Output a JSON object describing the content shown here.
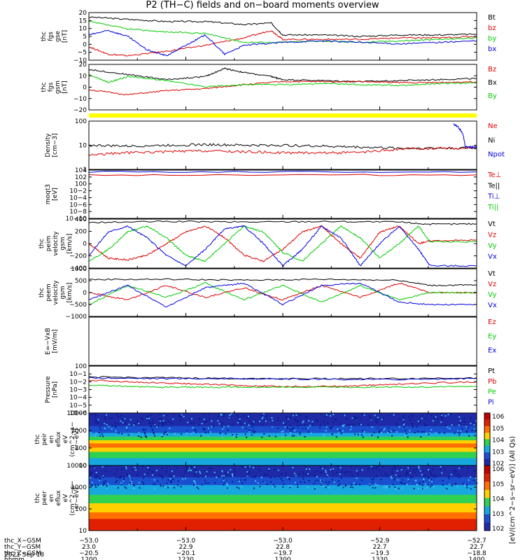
{
  "title": "P2 (TH−C) fields and on−board moments overview",
  "date_label": "2021 Sep 18",
  "orbit_rows": [
    {
      "label": "thc_X−GSM",
      "values": [
        "−53.0",
        "−53.0",
        "−53.0",
        "−52.9",
        "−52.7"
      ]
    },
    {
      "label": "thc_Y−GSM",
      "values": [
        "23.0",
        "22.9",
        "22.8",
        "22.7",
        "22.7"
      ]
    },
    {
      "label": "thc_Z−GSM",
      "values": [
        "−20.5",
        "−20.1",
        "−19.7",
        "−19.3",
        "−18.8"
      ]
    },
    {
      "label": "hhmm",
      "values": [
        "1200",
        "1230",
        "1300",
        "1330",
        "1400"
      ]
    }
  ],
  "colorbar_label": "[eV/(cm^2−s−sr−eV)] (All Qs)",
  "colorbar_ticks": [
    "10^2",
    "10^3",
    "10^4",
    "10^5",
    "10^6"
  ],
  "colors": {
    "black": "#000000",
    "red": "#dd0000",
    "green": "#00cc00",
    "blue": "#0000dd",
    "yellow": "#ffff00"
  },
  "chart_data": [
    {
      "type": "line",
      "ylabel": [
        "thc",
        "fgs",
        "gse",
        "[nT]"
      ],
      "yticks": [
        "20",
        "15",
        "10",
        "5",
        "0",
        "−5",
        "−10"
      ],
      "ylim": [
        -12,
        20
      ],
      "legend": [
        {
          "text": "Bt",
          "color": "black"
        },
        {
          "text": "bz",
          "color": "red"
        },
        {
          "text": "by",
          "color": "green"
        },
        {
          "text": "bx",
          "color": "blue"
        }
      ],
      "series": [
        {
          "name": "Bt",
          "color": "black",
          "x": [
            0,
            0.1,
            0.2,
            0.3,
            0.4,
            0.47,
            0.5,
            0.6,
            0.7,
            0.8,
            0.9,
            1
          ],
          "y": [
            17,
            15.5,
            14,
            14,
            12,
            13,
            5,
            5,
            4,
            5,
            5,
            5.5
          ]
        },
        {
          "name": "bz",
          "color": "red",
          "x": [
            0,
            0.05,
            0.1,
            0.2,
            0.3,
            0.4,
            0.47,
            0.5,
            0.6,
            0.7,
            0.8,
            0.9,
            1
          ],
          "y": [
            -3,
            -8,
            -9,
            -6,
            -2,
            3,
            8,
            2,
            2,
            2,
            3,
            3,
            4
          ]
        },
        {
          "name": "by",
          "color": "green",
          "x": [
            0,
            0.1,
            0.2,
            0.3,
            0.4,
            0.5,
            0.6,
            0.7,
            0.8,
            0.9,
            1
          ],
          "y": [
            14,
            9,
            7,
            6,
            0,
            0,
            1,
            0,
            1,
            2,
            3
          ]
        },
        {
          "name": "bx",
          "color": "blue",
          "x": [
            0,
            0.05,
            0.1,
            0.15,
            0.2,
            0.25,
            0.3,
            0.35,
            0.4,
            0.5,
            0.6,
            0.7,
            0.8,
            0.9,
            1
          ],
          "y": [
            5,
            8,
            4,
            -5,
            -9,
            -2,
            5,
            -8,
            -2,
            0,
            1,
            0,
            -1,
            0,
            1
          ]
        }
      ]
    },
    {
      "type": "line",
      "ylabel": [
        "thc",
        "fgs",
        "gsm",
        "[nT]"
      ],
      "yticks": [
        "20",
        "10",
        "0",
        "−10",
        "−20"
      ],
      "ylim": [
        -25,
        20
      ],
      "legend": [
        {
          "text": "Bz",
          "color": "red"
        },
        {
          "text": "Bx",
          "color": "black"
        },
        {
          "text": "By",
          "color": "green"
        }
      ],
      "series": [
        {
          "name": "Bx",
          "color": "black",
          "x": [
            0,
            0.1,
            0.2,
            0.3,
            0.35,
            0.4,
            0.47,
            0.5,
            0.6,
            0.7,
            0.8,
            0.9,
            1
          ],
          "y": [
            15,
            10,
            5,
            8,
            16,
            12,
            8,
            5,
            4,
            3,
            4,
            5,
            6
          ]
        },
        {
          "name": "Bz",
          "color": "red",
          "x": [
            0,
            0.1,
            0.2,
            0.3,
            0.4,
            0.5,
            0.6,
            0.7,
            0.8,
            0.9,
            1
          ],
          "y": [
            -5,
            -10,
            -6,
            -4,
            0,
            3,
            3,
            3,
            2,
            2,
            3
          ]
        },
        {
          "name": "By",
          "color": "green",
          "x": [
            0,
            0.05,
            0.1,
            0.2,
            0.3,
            0.4,
            0.5,
            0.6,
            0.7,
            0.8,
            0.9,
            1
          ],
          "y": [
            10,
            2,
            8,
            4,
            -2,
            0,
            0,
            1,
            0,
            -1,
            1,
            2
          ]
        }
      ]
    },
    {
      "type": "line",
      "ylabel": [
        "Density",
        "[cm−3]"
      ],
      "yticks": [
        "100",
        "10",
        "1"
      ],
      "ylim": [
        0.5,
        200
      ],
      "log": true,
      "legend": [
        {
          "text": "Ne",
          "color": "red"
        },
        {
          "text": "Ni",
          "color": "black"
        },
        {
          "text": "Npot",
          "color": "blue"
        }
      ],
      "series": [
        {
          "name": "Ni",
          "color": "black",
          "x": [
            0,
            0.1,
            0.2,
            0.3,
            0.4,
            0.5,
            0.6,
            0.7,
            0.8,
            0.9,
            1
          ],
          "y": [
            10,
            9,
            10,
            11,
            10,
            10,
            9,
            8,
            7,
            7,
            7
          ]
        },
        {
          "name": "Ne",
          "color": "red",
          "x": [
            0,
            0.1,
            0.2,
            0.3,
            0.4,
            0.5,
            0.6,
            0.7,
            0.8,
            0.9,
            1
          ],
          "y": [
            3,
            4,
            4.5,
            5,
            4.5,
            4,
            4,
            4,
            6,
            7,
            7
          ]
        },
        {
          "name": "Npot",
          "color": "blue",
          "x": [
            0.94,
            0.97,
            1
          ],
          "y": [
            150,
            8,
            8
          ]
        }
      ]
    },
    {
      "type": "line",
      "ylabel": [
        "moqt3",
        "[eV]"
      ],
      "yticks": [
        "10^4",
        "10^2",
        "10^0",
        "10^−2",
        "10^−4",
        "10^−6",
        "10^−8",
        "10^−10"
      ],
      "ylim": [
        -10,
        4
      ],
      "legend": [
        {
          "text": "Te⊥",
          "color": "red"
        },
        {
          "text": "Te||",
          "color": "black"
        },
        {
          "text": "Ti⊥",
          "color": "blue"
        },
        {
          "text": "Ti||",
          "color": "green"
        }
      ],
      "series": [
        {
          "name": "Ti⊥",
          "color": "blue",
          "x": [
            0,
            1
          ],
          "y": [
            3.5,
            3.5
          ]
        },
        {
          "name": "Te⊥",
          "color": "red",
          "x": [
            0,
            1
          ],
          "y": [
            2.6,
            2.6
          ]
        }
      ]
    },
    {
      "type": "line",
      "ylabel": [
        "thc",
        "peim",
        "velocity",
        "gsm",
        "[km/s]"
      ],
      "yticks": [
        "400",
        "200",
        "0",
        "−200",
        "−400"
      ],
      "ylim": [
        -420,
        420
      ],
      "legend": [
        {
          "text": "Vt",
          "color": "black"
        },
        {
          "text": "Vz",
          "color": "red"
        },
        {
          "text": "Vy",
          "color": "green"
        },
        {
          "text": "Vx",
          "color": "blue"
        }
      ],
      "series": [
        {
          "name": "Vt",
          "color": "black",
          "x": [
            0,
            0.2,
            0.4,
            0.6,
            0.8,
            0.88,
            1
          ],
          "y": [
            360,
            380,
            370,
            380,
            370,
            330,
            340
          ]
        },
        {
          "name": "Vz",
          "color": "red",
          "x": [
            0,
            0.05,
            0.1,
            0.15,
            0.2,
            0.25,
            0.3,
            0.35,
            0.4,
            0.45,
            0.5,
            0.55,
            0.6,
            0.65,
            0.7,
            0.75,
            0.8,
            0.85,
            0.88,
            1
          ],
          "y": [
            0,
            -250,
            -280,
            -200,
            0,
            200,
            300,
            100,
            -200,
            -300,
            -100,
            200,
            300,
            0,
            -250,
            200,
            300,
            0,
            50,
            60
          ]
        },
        {
          "name": "Vy",
          "color": "green",
          "x": [
            0,
            0.05,
            0.1,
            0.15,
            0.2,
            0.25,
            0.3,
            0.35,
            0.4,
            0.45,
            0.5,
            0.55,
            0.6,
            0.65,
            0.7,
            0.75,
            0.8,
            0.85,
            0.88,
            1
          ],
          "y": [
            -300,
            -100,
            200,
            300,
            100,
            -200,
            -300,
            0,
            300,
            200,
            -150,
            -300,
            0,
            300,
            100,
            -250,
            0,
            300,
            30,
            30
          ]
        },
        {
          "name": "Vx",
          "color": "blue",
          "x": [
            0,
            0.05,
            0.1,
            0.15,
            0.2,
            0.25,
            0.3,
            0.35,
            0.4,
            0.45,
            0.5,
            0.55,
            0.6,
            0.65,
            0.7,
            0.75,
            0.8,
            0.85,
            0.88,
            1
          ],
          "y": [
            -200,
            200,
            300,
            100,
            -200,
            -380,
            -100,
            250,
            300,
            0,
            -380,
            -100,
            300,
            100,
            -380,
            0,
            300,
            -100,
            -380,
            -380
          ]
        }
      ]
    },
    {
      "type": "line",
      "ylabel": [
        "thc",
        "peem",
        "velocity",
        "gsm",
        "[km/s]"
      ],
      "yticks": [
        "1000",
        "500",
        "0",
        "−500",
        "−1000"
      ],
      "ylim": [
        -1000,
        1000
      ],
      "legend": [
        {
          "text": "Vt",
          "color": "black"
        },
        {
          "text": "Vz",
          "color": "red"
        },
        {
          "text": "Vy",
          "color": "green"
        },
        {
          "text": "Vx",
          "color": "blue"
        }
      ],
      "series": [
        {
          "name": "Vt",
          "color": "black",
          "x": [
            0,
            0.2,
            0.4,
            0.6,
            0.8,
            0.88,
            1
          ],
          "y": [
            550,
            560,
            520,
            560,
            520,
            300,
            320
          ]
        },
        {
          "name": "Vz",
          "color": "red",
          "x": [
            0,
            0.1,
            0.2,
            0.3,
            0.4,
            0.5,
            0.6,
            0.7,
            0.8,
            0.88,
            1
          ],
          "y": [
            0,
            -300,
            300,
            -200,
            200,
            -300,
            300,
            -200,
            400,
            0,
            0
          ]
        },
        {
          "name": "Vy",
          "color": "green",
          "x": [
            0,
            0.1,
            0.2,
            0.3,
            0.4,
            0.5,
            0.6,
            0.7,
            0.8,
            0.88,
            1
          ],
          "y": [
            -500,
            300,
            -200,
            400,
            -300,
            300,
            -400,
            300,
            -300,
            0,
            0
          ]
        },
        {
          "name": "Vx",
          "color": "blue",
          "x": [
            0,
            0.1,
            0.2,
            0.3,
            0.4,
            0.5,
            0.6,
            0.7,
            0.8,
            0.88,
            1
          ],
          "y": [
            -300,
            300,
            -600,
            200,
            400,
            -500,
            300,
            400,
            -400,
            -500,
            -500
          ]
        }
      ]
    },
    {
      "type": "line",
      "ylabel": [
        "E=−VxB",
        "[mV/m]"
      ],
      "yticks": [],
      "ylim": [
        -1,
        1
      ],
      "legend": [
        {
          "text": "Ez",
          "color": "red"
        },
        {
          "text": "Ey",
          "color": "green"
        },
        {
          "text": "Ex",
          "color": "blue"
        }
      ],
      "series": []
    },
    {
      "type": "line",
      "ylabel": [
        "Pressure",
        "[nPa]"
      ],
      "yticks": [
        "10^0",
        "10^−1",
        "10^−2",
        "10^−3",
        "10^−4",
        "10^−5",
        "10^−6"
      ],
      "ylim": [
        -6,
        0
      ],
      "legend": [
        {
          "text": "Pt",
          "color": "black"
        },
        {
          "text": "Pb",
          "color": "red"
        },
        {
          "text": "Pe",
          "color": "green"
        },
        {
          "text": "Pi",
          "color": "blue"
        }
      ],
      "series": [
        {
          "name": "Pt",
          "color": "black",
          "x": [
            0,
            0.2,
            0.4,
            0.6,
            0.8,
            1
          ],
          "y": [
            -1.4,
            -1.5,
            -1.6,
            -1.6,
            -1.6,
            -1.5
          ]
        },
        {
          "name": "Pi",
          "color": "blue",
          "x": [
            0,
            0.2,
            0.4,
            0.6,
            0.8,
            1
          ],
          "y": [
            -1.5,
            -1.6,
            -1.6,
            -1.7,
            -1.7,
            -1.6
          ]
        },
        {
          "name": "Pb",
          "color": "red",
          "x": [
            0,
            0.1,
            0.2,
            0.3,
            0.4,
            0.5,
            0.6,
            0.7,
            0.8,
            1
          ],
          "y": [
            -1.8,
            -2,
            -2.2,
            -2.3,
            -2.5,
            -2.6,
            -2.6,
            -2.5,
            -2.3,
            -2
          ]
        },
        {
          "name": "Pe",
          "color": "green",
          "x": [
            0,
            0.1,
            0.2,
            0.3,
            0.4,
            0.6,
            0.8,
            1
          ],
          "y": [
            -2.4,
            -2.6,
            -2.7,
            -2.7,
            -2.7,
            -2.7,
            -2.7,
            -2.6
          ]
        }
      ]
    },
    {
      "type": "heatmap",
      "ylabel": [
        "thc",
        "peir",
        "en",
        "eflux",
        "eV",
        "(cm^2−s−",
        "sr−eV)"
      ],
      "yticks": [
        "10000",
        "1000",
        "100",
        "10"
      ]
    },
    {
      "type": "heatmap",
      "ylabel": [
        "thc",
        "peer",
        "en",
        "eflux",
        "eV",
        "(cm^2−s−",
        "sr−eV)"
      ],
      "yticks": [
        "10000",
        "1000",
        "100",
        "10"
      ]
    }
  ]
}
